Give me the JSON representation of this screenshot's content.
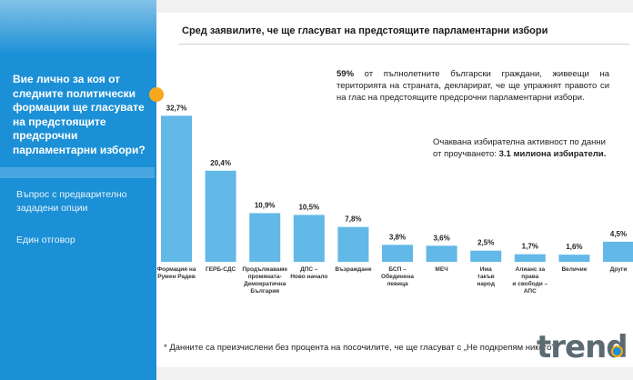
{
  "left_panel": {
    "question": "Вие лично за коя от следните политически формации ще гласувате на предстоящите предсрочни парламентарни избори?",
    "note_format": "Въпрос с предварително зададени опции",
    "note_answer": "Един отговор"
  },
  "header": {
    "title": "Сред заявилите, че ще гласуват на предстоящите парламентарни избори"
  },
  "info": {
    "pct": "59%",
    "text": " от пълнолетните български граждани, живеещи на територията на страната, декларират, че ще упражнят правото си на глас на предстоящите предсрочни парламентарни избори.",
    "turnout_prefix": "Очаквана избирателна активност по данни от проучването: ",
    "turnout_value": "3.1 милиона избиратели."
  },
  "footnote": "* Данните са преизчислени без процента на посочилите, че ще гласуват с „Не подкрепям никого\"",
  "logo": "trend",
  "colors": {
    "bar": "#62b8e7",
    "panel": "#1c90d6",
    "accent": "#f5a91b"
  },
  "chart_data": {
    "type": "bar",
    "categories": [
      [
        "Формация на",
        "Румен Радев"
      ],
      [
        "ГЕРБ-СДС"
      ],
      [
        "Продължаваме",
        "промяната-",
        "Демократична",
        "България"
      ],
      [
        "ДПС –",
        "Ново начало"
      ],
      [
        "Възраждане"
      ],
      [
        "БСП –",
        "Обединена",
        "левица"
      ],
      [
        "МЕЧ"
      ],
      [
        "Има",
        "такъв",
        "народ"
      ],
      [
        "Алианс за",
        "права",
        "и свободи –",
        "АПС"
      ],
      [
        "Величие"
      ],
      [
        "Други"
      ]
    ],
    "values": [
      32.7,
      20.4,
      10.9,
      10.5,
      7.8,
      3.8,
      3.6,
      2.5,
      1.7,
      1.6,
      4.5
    ],
    "labels": [
      "32,7%",
      "20,4%",
      "10,9%",
      "10,5%",
      "7,8%",
      "3,8%",
      "3,6%",
      "2,5%",
      "1,7%",
      "1,6%",
      "4,5%"
    ],
    "ylim": [
      0,
      35
    ]
  }
}
